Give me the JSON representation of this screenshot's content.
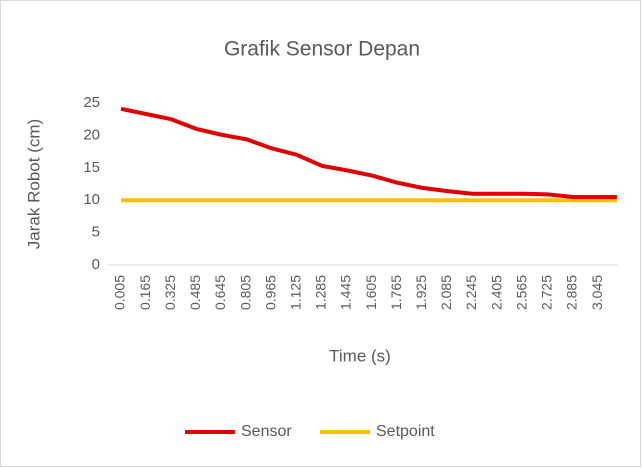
{
  "chart_data": {
    "type": "line",
    "title": "Grafik Sensor Depan",
    "xlabel": "Time (s)",
    "ylabel": "Jarak Robot (cm)",
    "x": [
      0.005,
      0.165,
      0.325,
      0.485,
      0.645,
      0.805,
      0.965,
      1.125,
      1.285,
      1.445,
      1.605,
      1.765,
      1.925,
      2.085,
      2.245,
      2.405,
      2.565,
      2.725,
      2.885,
      3.045,
      3.165
    ],
    "series": [
      {
        "name": "Sensor",
        "color": "#e00000",
        "values": [
          24.1,
          23.3,
          22.5,
          21.0,
          20.1,
          19.4,
          18.0,
          17.0,
          15.3,
          14.6,
          13.8,
          12.7,
          11.9,
          11.4,
          11.0,
          11.0,
          11.0,
          10.9,
          10.5,
          10.5,
          10.5
        ]
      },
      {
        "name": "Setpoint",
        "color": "#ffc000",
        "values": [
          10,
          10,
          10,
          10,
          10,
          10,
          10,
          10,
          10,
          10,
          10,
          10,
          10,
          10,
          10,
          10,
          10,
          10,
          10,
          10,
          10
        ]
      }
    ],
    "xlim": [
      -0.078,
      3.172
    ],
    "xticks": [
      0.005,
      0.165,
      0.325,
      0.485,
      0.645,
      0.805,
      0.965,
      1.125,
      1.285,
      1.445,
      1.605,
      1.765,
      1.925,
      2.085,
      2.245,
      2.405,
      2.565,
      2.725,
      2.885,
      3.045
    ],
    "ylim": [
      0,
      25
    ],
    "yticks": [
      0,
      5,
      10,
      15,
      20,
      25
    ],
    "legend": "bottom"
  }
}
